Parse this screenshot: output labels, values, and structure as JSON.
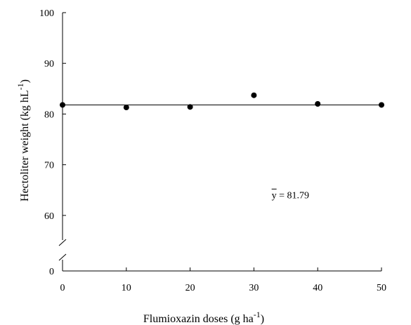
{
  "chart_data": {
    "type": "scatter",
    "xlabel": {
      "main": "Flumioxazin doses (g ha",
      "sup": "-1",
      "tail": ")"
    },
    "ylabel": {
      "main": "Hectoliter weight  (kg hL",
      "sup": "-1",
      "tail": ")"
    },
    "x_ticks": [
      0,
      10,
      20,
      30,
      40,
      50
    ],
    "y_ticks": [
      0,
      60,
      70,
      80,
      90,
      100
    ],
    "xlim": [
      0,
      50
    ],
    "ylim_upper": [
      55,
      100
    ],
    "axis_break": true,
    "grid": false,
    "points": [
      {
        "x": 0,
        "y": 81.8
      },
      {
        "x": 10,
        "y": 81.3
      },
      {
        "x": 20,
        "y": 81.4
      },
      {
        "x": 30,
        "y": 83.7
      },
      {
        "x": 40,
        "y": 82.0
      },
      {
        "x": 50,
        "y": 81.8
      }
    ],
    "fit_line": {
      "y": 81.79
    },
    "annotation": {
      "lhs": "y",
      "rhs": " = 81.79",
      "x": 33,
      "y": 63.4
    }
  }
}
